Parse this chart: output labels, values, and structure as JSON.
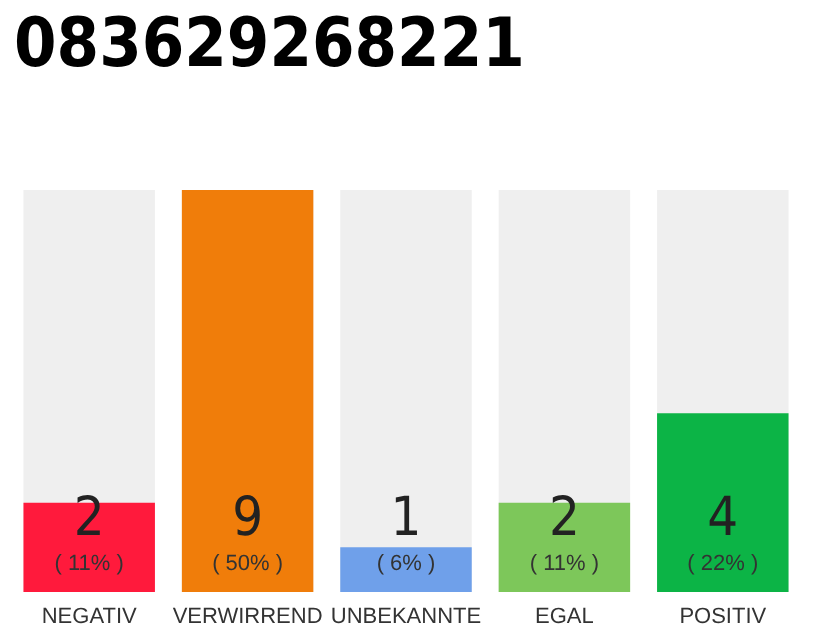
{
  "chart_data": {
    "type": "bar",
    "title": "083629268221",
    "categories": [
      "NEGATIV",
      "VERWIRREND",
      "UNBEKANNTE",
      "EGAL",
      "POSITIV"
    ],
    "values": [
      2,
      9,
      1,
      2,
      4
    ],
    "colors": [
      "#ff1a3c",
      "#f07d0a",
      "#6fa0ea",
      "#7dc75a",
      "#0cb446"
    ],
    "data_labels": true,
    "annotations": [
      "( 11% )",
      "( 50% )",
      "( 6% )",
      "( 11% )",
      "( 22% )"
    ]
  }
}
